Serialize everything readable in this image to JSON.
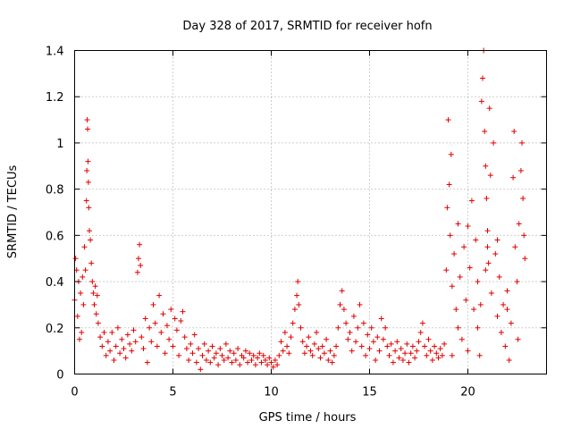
{
  "chart_data": {
    "type": "scatter",
    "title": "Day 328 of 2017, SRMTID for receiver hofn",
    "xlabel": "GPS time / hours",
    "ylabel": "SRMTID / TECUs",
    "xlim": [
      0,
      24
    ],
    "ylim": [
      0,
      1.4
    ],
    "xticks": [
      0,
      5,
      10,
      15,
      20
    ],
    "xtick_labels": [
      "0",
      "5",
      "10",
      "15",
      "20"
    ],
    "yticks": [
      0,
      0.2,
      0.4,
      0.6,
      0.8,
      1.0,
      1.2,
      1.4
    ],
    "ytick_labels": [
      "0",
      "0.2",
      "0.4",
      "0.6",
      "0.8",
      "1",
      "1.2",
      "1.4"
    ],
    "grid": true,
    "marker": "+",
    "marker_color": "#e00000",
    "series": [
      {
        "name": "SRMTID",
        "points": [
          [
            0.0,
            0.32
          ],
          [
            0.05,
            0.5
          ],
          [
            0.1,
            0.45
          ],
          [
            0.15,
            0.25
          ],
          [
            0.2,
            0.4
          ],
          [
            0.25,
            0.15
          ],
          [
            0.3,
            0.35
          ],
          [
            0.35,
            0.18
          ],
          [
            0.4,
            0.42
          ],
          [
            0.45,
            0.3
          ],
          [
            0.5,
            0.55
          ],
          [
            0.55,
            0.45
          ],
          [
            0.6,
            0.75
          ],
          [
            0.62,
            0.88
          ],
          [
            0.64,
            1.1
          ],
          [
            0.66,
            1.06
          ],
          [
            0.68,
            0.92
          ],
          [
            0.7,
            0.83
          ],
          [
            0.72,
            0.72
          ],
          [
            0.75,
            0.62
          ],
          [
            0.8,
            0.58
          ],
          [
            0.85,
            0.48
          ],
          [
            0.9,
            0.4
          ],
          [
            0.95,
            0.35
          ],
          [
            1.0,
            0.3
          ],
          [
            1.05,
            0.38
          ],
          [
            1.1,
            0.26
          ],
          [
            1.15,
            0.34
          ],
          [
            1.2,
            0.22
          ],
          [
            1.3,
            0.16
          ],
          [
            1.4,
            0.12
          ],
          [
            1.5,
            0.18
          ],
          [
            1.6,
            0.08
          ],
          [
            1.7,
            0.14
          ],
          [
            1.8,
            0.1
          ],
          [
            1.9,
            0.18
          ],
          [
            2.0,
            0.06
          ],
          [
            2.1,
            0.12
          ],
          [
            2.2,
            0.2
          ],
          [
            2.3,
            0.09
          ],
          [
            2.4,
            0.15
          ],
          [
            2.5,
            0.11
          ],
          [
            2.6,
            0.07
          ],
          [
            2.7,
            0.17
          ],
          [
            2.8,
            0.13
          ],
          [
            2.9,
            0.1
          ],
          [
            3.0,
            0.19
          ],
          [
            3.1,
            0.14
          ],
          [
            3.2,
            0.44
          ],
          [
            3.25,
            0.5
          ],
          [
            3.3,
            0.56
          ],
          [
            3.35,
            0.47
          ],
          [
            3.4,
            0.16
          ],
          [
            3.5,
            0.11
          ],
          [
            3.6,
            0.24
          ],
          [
            3.7,
            0.05
          ],
          [
            3.8,
            0.2
          ],
          [
            3.9,
            0.14
          ],
          [
            4.0,
            0.3
          ],
          [
            4.1,
            0.22
          ],
          [
            4.2,
            0.12
          ],
          [
            4.3,
            0.34
          ],
          [
            4.4,
            0.18
          ],
          [
            4.5,
            0.26
          ],
          [
            4.6,
            0.09
          ],
          [
            4.7,
            0.21
          ],
          [
            4.8,
            0.15
          ],
          [
            4.9,
            0.28
          ],
          [
            5.0,
            0.12
          ],
          [
            5.1,
            0.24
          ],
          [
            5.2,
            0.19
          ],
          [
            5.3,
            0.08
          ],
          [
            5.4,
            0.23
          ],
          [
            5.5,
            0.27
          ],
          [
            5.6,
            0.16
          ],
          [
            5.7,
            0.11
          ],
          [
            5.8,
            0.06
          ],
          [
            5.9,
            0.13
          ],
          [
            6.0,
            0.09
          ],
          [
            6.1,
            0.17
          ],
          [
            6.2,
            0.05
          ],
          [
            6.3,
            0.11
          ],
          [
            6.4,
            0.02
          ],
          [
            6.5,
            0.08
          ],
          [
            6.6,
            0.13
          ],
          [
            6.7,
            0.06
          ],
          [
            6.8,
            0.1
          ],
          [
            6.9,
            0.05
          ],
          [
            7.0,
            0.12
          ],
          [
            7.1,
            0.07
          ],
          [
            7.2,
            0.09
          ],
          [
            7.3,
            0.04
          ],
          [
            7.4,
            0.11
          ],
          [
            7.5,
            0.08
          ],
          [
            7.6,
            0.06
          ],
          [
            7.7,
            0.13
          ],
          [
            7.8,
            0.07
          ],
          [
            7.9,
            0.1
          ],
          [
            8.0,
            0.05
          ],
          [
            8.1,
            0.09
          ],
          [
            8.2,
            0.06
          ],
          [
            8.3,
            0.11
          ],
          [
            8.4,
            0.04
          ],
          [
            8.5,
            0.08
          ],
          [
            8.6,
            0.07
          ],
          [
            8.7,
            0.1
          ],
          [
            8.8,
            0.05
          ],
          [
            8.9,
            0.09
          ],
          [
            9.0,
            0.06
          ],
          [
            9.1,
            0.08
          ],
          [
            9.2,
            0.04
          ],
          [
            9.3,
            0.07
          ],
          [
            9.4,
            0.09
          ],
          [
            9.5,
            0.05
          ],
          [
            9.6,
            0.08
          ],
          [
            9.7,
            0.06
          ],
          [
            9.8,
            0.04
          ],
          [
            9.9,
            0.07
          ],
          [
            10.0,
            0.05
          ],
          [
            10.1,
            0.03
          ],
          [
            10.2,
            0.06
          ],
          [
            10.3,
            0.04
          ],
          [
            10.4,
            0.08
          ],
          [
            10.5,
            0.14
          ],
          [
            10.6,
            0.1
          ],
          [
            10.7,
            0.18
          ],
          [
            10.8,
            0.12
          ],
          [
            10.9,
            0.09
          ],
          [
            11.0,
            0.16
          ],
          [
            11.1,
            0.22
          ],
          [
            11.2,
            0.28
          ],
          [
            11.3,
            0.34
          ],
          [
            11.35,
            0.4
          ],
          [
            11.4,
            0.3
          ],
          [
            11.5,
            0.2
          ],
          [
            11.6,
            0.14
          ],
          [
            11.7,
            0.09
          ],
          [
            11.8,
            0.12
          ],
          [
            11.9,
            0.16
          ],
          [
            12.0,
            0.1
          ],
          [
            12.1,
            0.08
          ],
          [
            12.2,
            0.13
          ],
          [
            12.3,
            0.18
          ],
          [
            12.4,
            0.11
          ],
          [
            12.5,
            0.07
          ],
          [
            12.6,
            0.12
          ],
          [
            12.7,
            0.09
          ],
          [
            12.8,
            0.15
          ],
          [
            12.9,
            0.06
          ],
          [
            13.0,
            0.1
          ],
          [
            13.1,
            0.05
          ],
          [
            13.2,
            0.08
          ],
          [
            13.3,
            0.12
          ],
          [
            13.4,
            0.2
          ],
          [
            13.5,
            0.3
          ],
          [
            13.6,
            0.36
          ],
          [
            13.7,
            0.28
          ],
          [
            13.8,
            0.22
          ],
          [
            13.9,
            0.15
          ],
          [
            14.0,
            0.18
          ],
          [
            14.1,
            0.1
          ],
          [
            14.2,
            0.25
          ],
          [
            14.3,
            0.14
          ],
          [
            14.4,
            0.2
          ],
          [
            14.5,
            0.3
          ],
          [
            14.6,
            0.12
          ],
          [
            14.7,
            0.22
          ],
          [
            14.8,
            0.08
          ],
          [
            14.9,
            0.17
          ],
          [
            15.0,
            0.11
          ],
          [
            15.1,
            0.2
          ],
          [
            15.2,
            0.14
          ],
          [
            15.3,
            0.06
          ],
          [
            15.4,
            0.16
          ],
          [
            15.5,
            0.1
          ],
          [
            15.6,
            0.24
          ],
          [
            15.7,
            0.15
          ],
          [
            15.8,
            0.2
          ],
          [
            15.9,
            0.12
          ],
          [
            16.0,
            0.08
          ],
          [
            16.1,
            0.13
          ],
          [
            16.2,
            0.05
          ],
          [
            16.3,
            0.1
          ],
          [
            16.4,
            0.14
          ],
          [
            16.5,
            0.07
          ],
          [
            16.6,
            0.11
          ],
          [
            16.7,
            0.06
          ],
          [
            16.8,
            0.09
          ],
          [
            16.9,
            0.13
          ],
          [
            17.0,
            0.05
          ],
          [
            17.1,
            0.09
          ],
          [
            17.2,
            0.12
          ],
          [
            17.3,
            0.07
          ],
          [
            17.4,
            0.1
          ],
          [
            17.5,
            0.14
          ],
          [
            17.6,
            0.18
          ],
          [
            17.7,
            0.22
          ],
          [
            17.8,
            0.12
          ],
          [
            17.9,
            0.08
          ],
          [
            18.0,
            0.15
          ],
          [
            18.1,
            0.1
          ],
          [
            18.2,
            0.06
          ],
          [
            18.3,
            0.12
          ],
          [
            18.4,
            0.09
          ],
          [
            18.5,
            0.07
          ],
          [
            18.6,
            0.11
          ],
          [
            18.7,
            0.08
          ],
          [
            18.8,
            0.13
          ],
          [
            18.9,
            0.45
          ],
          [
            18.95,
            0.72
          ],
          [
            19.0,
            1.1
          ],
          [
            19.05,
            0.82
          ],
          [
            19.1,
            0.6
          ],
          [
            19.15,
            0.95
          ],
          [
            19.2,
            0.38
          ],
          [
            19.3,
            0.52
          ],
          [
            19.4,
            0.28
          ],
          [
            19.5,
            0.2
          ],
          [
            19.6,
            0.42
          ],
          [
            19.7,
            0.15
          ],
          [
            19.8,
            0.55
          ],
          [
            19.9,
            0.32
          ],
          [
            20.0,
            0.64
          ],
          [
            20.1,
            0.46
          ],
          [
            20.2,
            0.75
          ],
          [
            20.3,
            0.28
          ],
          [
            20.4,
            0.58
          ],
          [
            20.5,
            0.4
          ],
          [
            20.6,
            0.08
          ],
          [
            20.65,
            0.3
          ],
          [
            20.7,
            1.18
          ],
          [
            20.75,
            1.28
          ],
          [
            20.8,
            1.4
          ],
          [
            20.85,
            1.05
          ],
          [
            20.9,
            0.9
          ],
          [
            20.95,
            0.76
          ],
          [
            21.0,
            0.62
          ],
          [
            21.05,
            0.48
          ],
          [
            21.1,
            1.15
          ],
          [
            21.15,
            0.86
          ],
          [
            21.2,
            0.35
          ],
          [
            21.3,
            1.0
          ],
          [
            21.4,
            0.52
          ],
          [
            21.5,
            0.25
          ],
          [
            21.6,
            0.42
          ],
          [
            21.7,
            0.18
          ],
          [
            21.8,
            0.3
          ],
          [
            21.9,
            0.12
          ],
          [
            22.0,
            0.36
          ],
          [
            22.1,
            0.06
          ],
          [
            22.2,
            0.22
          ],
          [
            22.3,
            0.85
          ],
          [
            22.35,
            1.05
          ],
          [
            22.4,
            0.55
          ],
          [
            22.5,
            0.4
          ],
          [
            22.55,
            0.15
          ],
          [
            22.6,
            0.65
          ],
          [
            22.7,
            0.88
          ],
          [
            22.75,
            1.0
          ],
          [
            22.8,
            0.76
          ],
          [
            22.85,
            0.6
          ],
          [
            22.9,
            0.5
          ],
          [
            21.0,
            0.55
          ],
          [
            20.5,
            0.2
          ],
          [
            19.5,
            0.65
          ],
          [
            20.0,
            0.1
          ],
          [
            21.5,
            0.58
          ],
          [
            22.0,
            0.28
          ],
          [
            19.2,
            0.08
          ],
          [
            20.9,
            0.45
          ]
        ]
      }
    ]
  }
}
